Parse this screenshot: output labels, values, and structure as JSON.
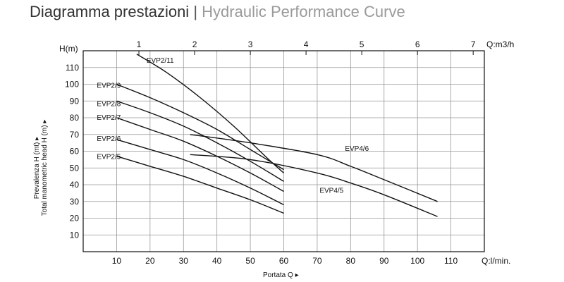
{
  "header": {
    "title_it": "Diagramma prestazioni",
    "separator": "|",
    "title_en": "Hydraulic Performance Curve"
  },
  "colors": {
    "title": "#333333",
    "subtitle": "#9a9a9a",
    "lines": "#111111",
    "grid": "#999999"
  },
  "chart_data": {
    "type": "line",
    "title": "",
    "ylabel": "H(m)",
    "ylabel_side": [
      "Prevalenza H (mt) ▸",
      "Total manometric head H (m) ▸"
    ],
    "xlabel": "Q:l/min.",
    "xlabel_caption": "Portata Q ▸",
    "x2label": "Q:m3/h",
    "xlim": [
      0,
      120
    ],
    "ylim": [
      0,
      120
    ],
    "x_ticks": [
      10,
      20,
      30,
      40,
      50,
      60,
      70,
      80,
      90,
      100,
      110
    ],
    "y_ticks": [
      10,
      20,
      30,
      40,
      50,
      60,
      70,
      80,
      90,
      100,
      110
    ],
    "x2_ticks": [
      1,
      2,
      3,
      4,
      5,
      6,
      7
    ],
    "grid": true,
    "series": [
      {
        "name": "EVP2/11",
        "x": [
          16,
          25,
          35,
          45,
          55,
          60
        ],
        "y": [
          118,
          107,
          92,
          75,
          56,
          47
        ]
      },
      {
        "name": "EVP2/9",
        "x": [
          10,
          20,
          30,
          40,
          50,
          60
        ],
        "y": [
          100,
          92,
          83,
          73,
          61,
          49
        ]
      },
      {
        "name": "EVP2/8",
        "x": [
          10,
          20,
          30,
          40,
          50,
          60
        ],
        "y": [
          90,
          83,
          75,
          65,
          54,
          42
        ]
      },
      {
        "name": "EVP2/7",
        "x": [
          10,
          20,
          30,
          40,
          50,
          60
        ],
        "y": [
          80,
          73,
          66,
          57,
          47,
          36
        ]
      },
      {
        "name": "EVP2/6",
        "x": [
          10,
          20,
          30,
          40,
          50,
          60
        ],
        "y": [
          67,
          61,
          55,
          47,
          38,
          28
        ]
      },
      {
        "name": "EVP2/5",
        "x": [
          10,
          20,
          30,
          40,
          50,
          60
        ],
        "y": [
          57,
          51,
          45,
          38,
          31,
          23
        ]
      },
      {
        "name": "EVP4/6",
        "x": [
          32,
          50,
          70,
          80,
          90,
          106
        ],
        "y": [
          70,
          65,
          58,
          51,
          43,
          30
        ]
      },
      {
        "name": "EVP4/5",
        "x": [
          32,
          50,
          70,
          80,
          90,
          106
        ],
        "y": [
          58,
          55,
          47,
          41,
          34,
          21
        ]
      }
    ]
  }
}
